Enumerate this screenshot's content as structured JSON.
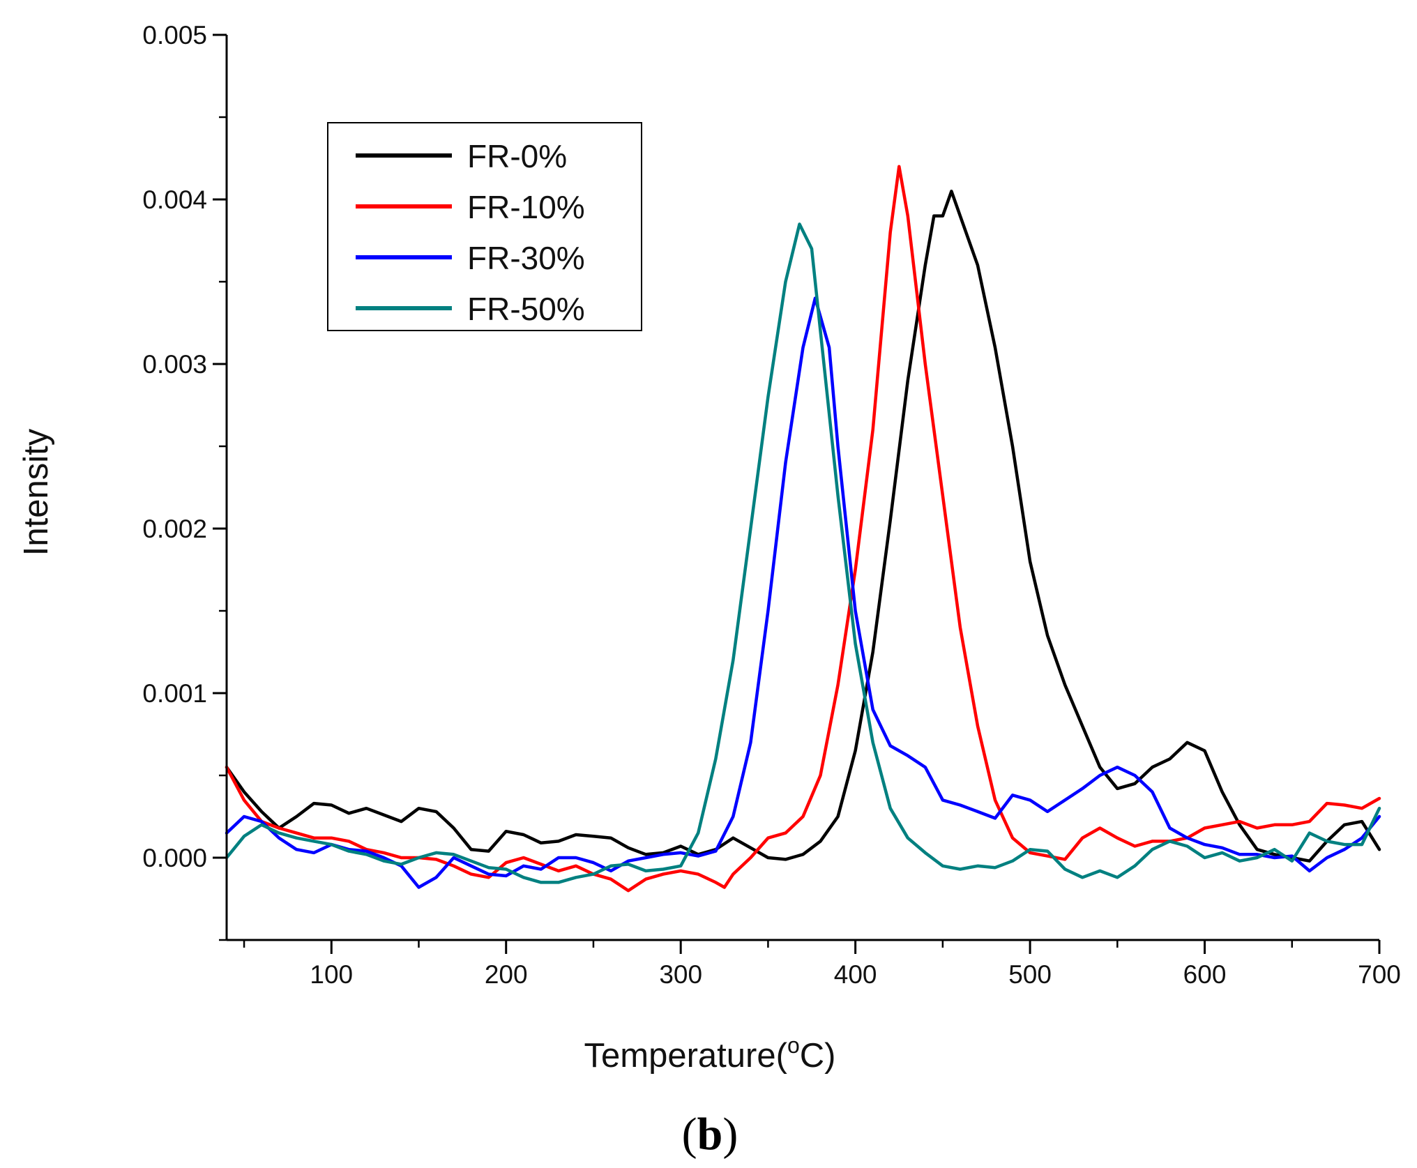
{
  "chart_data": {
    "type": "line",
    "title": "",
    "xlabel": "Temperature",
    "xlabel_unit": "(oC)",
    "xlabel_unit_parts": {
      "open": "(",
      "sup": "o",
      "unit": "C)"
    },
    "ylabel": "Intensity",
    "panel_label": "(b)",
    "panel_label_parts": {
      "open": "(",
      "letter": "b",
      "close": ")"
    },
    "xlim": [
      40,
      700
    ],
    "ylim": [
      -0.0005,
      0.005
    ],
    "xticks": [
      100,
      200,
      300,
      400,
      500,
      600,
      700
    ],
    "xtick_labels": [
      "100",
      "200",
      "300",
      "400",
      "500",
      "600",
      "700"
    ],
    "yticks": [
      0.0,
      0.001,
      0.002,
      0.003,
      0.004,
      0.005
    ],
    "ytick_labels": [
      "0.000",
      "0.001",
      "0.002",
      "0.003",
      "0.004",
      "0.005"
    ],
    "legend_position": "upper-left",
    "series": [
      {
        "name": "FR-0%",
        "color": "#000000",
        "points": [
          [
            40,
            0.00055
          ],
          [
            50,
            0.0004
          ],
          [
            60,
            0.00028
          ],
          [
            70,
            0.00018
          ],
          [
            80,
            0.00025
          ],
          [
            90,
            0.00033
          ],
          [
            100,
            0.00032
          ],
          [
            110,
            0.00027
          ],
          [
            120,
            0.0003
          ],
          [
            130,
            0.00026
          ],
          [
            140,
            0.00022
          ],
          [
            150,
            0.0003
          ],
          [
            160,
            0.00028
          ],
          [
            170,
            0.00018
          ],
          [
            180,
            5e-05
          ],
          [
            190,
            4e-05
          ],
          [
            200,
            0.00016
          ],
          [
            210,
            0.00014
          ],
          [
            220,
            9e-05
          ],
          [
            230,
            0.0001
          ],
          [
            240,
            0.00014
          ],
          [
            250,
            0.00013
          ],
          [
            260,
            0.00012
          ],
          [
            270,
            6e-05
          ],
          [
            280,
            2e-05
          ],
          [
            290,
            3e-05
          ],
          [
            300,
            7e-05
          ],
          [
            310,
            2e-05
          ],
          [
            320,
            5e-05
          ],
          [
            330,
            0.00012
          ],
          [
            340,
            6e-05
          ],
          [
            350,
            0.0
          ],
          [
            360,
            -1e-05
          ],
          [
            370,
            2e-05
          ],
          [
            380,
            0.0001
          ],
          [
            390,
            0.00025
          ],
          [
            400,
            0.00065
          ],
          [
            410,
            0.00125
          ],
          [
            420,
            0.00205
          ],
          [
            430,
            0.0029
          ],
          [
            440,
            0.0036
          ],
          [
            445,
            0.0039
          ],
          [
            450,
            0.0039
          ],
          [
            455,
            0.00405
          ],
          [
            460,
            0.0039
          ],
          [
            470,
            0.0036
          ],
          [
            480,
            0.0031
          ],
          [
            490,
            0.0025
          ],
          [
            500,
            0.0018
          ],
          [
            510,
            0.00135
          ],
          [
            520,
            0.00105
          ],
          [
            530,
            0.0008
          ],
          [
            540,
            0.00055
          ],
          [
            550,
            0.00042
          ],
          [
            560,
            0.00045
          ],
          [
            570,
            0.00055
          ],
          [
            580,
            0.0006
          ],
          [
            590,
            0.0007
          ],
          [
            600,
            0.00065
          ],
          [
            610,
            0.0004
          ],
          [
            620,
            0.0002
          ],
          [
            630,
            5e-05
          ],
          [
            640,
            2e-05
          ],
          [
            650,
            0.0
          ],
          [
            660,
            -2e-05
          ],
          [
            670,
            0.0001
          ],
          [
            680,
            0.0002
          ],
          [
            690,
            0.00022
          ],
          [
            700,
            5e-05
          ]
        ]
      },
      {
        "name": "FR-10%",
        "color": "#ff0000",
        "points": [
          [
            40,
            0.00055
          ],
          [
            50,
            0.00035
          ],
          [
            60,
            0.00022
          ],
          [
            70,
            0.00018
          ],
          [
            80,
            0.00015
          ],
          [
            90,
            0.00012
          ],
          [
            100,
            0.00012
          ],
          [
            110,
            0.0001
          ],
          [
            120,
            5e-05
          ],
          [
            130,
            3e-05
          ],
          [
            140,
            0.0
          ],
          [
            150,
            0.0
          ],
          [
            160,
            -1e-05
          ],
          [
            170,
            -5e-05
          ],
          [
            180,
            -0.0001
          ],
          [
            190,
            -0.00012
          ],
          [
            200,
            -3e-05
          ],
          [
            210,
            0.0
          ],
          [
            220,
            -4e-05
          ],
          [
            230,
            -8e-05
          ],
          [
            240,
            -5e-05
          ],
          [
            250,
            -0.0001
          ],
          [
            260,
            -0.00013
          ],
          [
            270,
            -0.0002
          ],
          [
            280,
            -0.00013
          ],
          [
            290,
            -0.0001
          ],
          [
            300,
            -8e-05
          ],
          [
            310,
            -0.0001
          ],
          [
            320,
            -0.00015
          ],
          [
            325,
            -0.00018
          ],
          [
            330,
            -0.0001
          ],
          [
            340,
            0.0
          ],
          [
            350,
            0.00012
          ],
          [
            360,
            0.00015
          ],
          [
            370,
            0.00025
          ],
          [
            380,
            0.0005
          ],
          [
            390,
            0.00105
          ],
          [
            400,
            0.00175
          ],
          [
            410,
            0.0026
          ],
          [
            420,
            0.0038
          ],
          [
            425,
            0.0042
          ],
          [
            430,
            0.0039
          ],
          [
            440,
            0.003
          ],
          [
            450,
            0.0022
          ],
          [
            460,
            0.0014
          ],
          [
            470,
            0.0008
          ],
          [
            480,
            0.00035
          ],
          [
            490,
            0.00012
          ],
          [
            500,
            3e-05
          ],
          [
            510,
            1e-05
          ],
          [
            520,
            -1e-05
          ],
          [
            530,
            0.00012
          ],
          [
            540,
            0.00018
          ],
          [
            550,
            0.00012
          ],
          [
            560,
            7e-05
          ],
          [
            570,
            0.0001
          ],
          [
            580,
            0.0001
          ],
          [
            590,
            0.00012
          ],
          [
            600,
            0.00018
          ],
          [
            610,
            0.0002
          ],
          [
            620,
            0.00022
          ],
          [
            630,
            0.00018
          ],
          [
            640,
            0.0002
          ],
          [
            650,
            0.0002
          ],
          [
            660,
            0.00022
          ],
          [
            670,
            0.00033
          ],
          [
            680,
            0.00032
          ],
          [
            690,
            0.0003
          ],
          [
            700,
            0.00036
          ]
        ]
      },
      {
        "name": "FR-30%",
        "color": "#0000ff",
        "points": [
          [
            40,
            0.00015
          ],
          [
            50,
            0.00025
          ],
          [
            60,
            0.00022
          ],
          [
            70,
            0.00012
          ],
          [
            80,
            5e-05
          ],
          [
            90,
            3e-05
          ],
          [
            100,
            8e-05
          ],
          [
            110,
            5e-05
          ],
          [
            120,
            4e-05
          ],
          [
            130,
            0.0
          ],
          [
            140,
            -5e-05
          ],
          [
            150,
            -0.00018
          ],
          [
            160,
            -0.00012
          ],
          [
            170,
            0.0
          ],
          [
            180,
            -5e-05
          ],
          [
            190,
            -0.0001
          ],
          [
            200,
            -0.00011
          ],
          [
            210,
            -5e-05
          ],
          [
            220,
            -7e-05
          ],
          [
            230,
            0.0
          ],
          [
            240,
            0.0
          ],
          [
            250,
            -3e-05
          ],
          [
            260,
            -8e-05
          ],
          [
            270,
            -2e-05
          ],
          [
            280,
            0.0
          ],
          [
            290,
            2e-05
          ],
          [
            300,
            3e-05
          ],
          [
            310,
            1e-05
          ],
          [
            320,
            4e-05
          ],
          [
            330,
            0.00025
          ],
          [
            340,
            0.0007
          ],
          [
            350,
            0.0015
          ],
          [
            360,
            0.0024
          ],
          [
            370,
            0.0031
          ],
          [
            377,
            0.0034
          ],
          [
            385,
            0.0031
          ],
          [
            390,
            0.0025
          ],
          [
            400,
            0.0015
          ],
          [
            410,
            0.0009
          ],
          [
            420,
            0.00068
          ],
          [
            430,
            0.00062
          ],
          [
            440,
            0.00055
          ],
          [
            450,
            0.00035
          ],
          [
            460,
            0.00032
          ],
          [
            470,
            0.00028
          ],
          [
            480,
            0.00024
          ],
          [
            490,
            0.00038
          ],
          [
            500,
            0.00035
          ],
          [
            510,
            0.00028
          ],
          [
            520,
            0.00035
          ],
          [
            530,
            0.00042
          ],
          [
            540,
            0.0005
          ],
          [
            550,
            0.00055
          ],
          [
            560,
            0.0005
          ],
          [
            570,
            0.0004
          ],
          [
            580,
            0.00018
          ],
          [
            590,
            0.00012
          ],
          [
            600,
            8e-05
          ],
          [
            610,
            6e-05
          ],
          [
            620,
            2e-05
          ],
          [
            630,
            2e-05
          ],
          [
            640,
            0.0
          ],
          [
            650,
            1e-05
          ],
          [
            660,
            -8e-05
          ],
          [
            670,
            0.0
          ],
          [
            680,
            5e-05
          ],
          [
            690,
            0.00012
          ],
          [
            700,
            0.00025
          ]
        ]
      },
      {
        "name": "FR-50%",
        "color": "#008080",
        "points": [
          [
            40,
            0.0
          ],
          [
            50,
            0.00013
          ],
          [
            60,
            0.0002
          ],
          [
            70,
            0.00015
          ],
          [
            80,
            0.00012
          ],
          [
            90,
            0.0001
          ],
          [
            100,
            8e-05
          ],
          [
            110,
            4e-05
          ],
          [
            120,
            2e-05
          ],
          [
            130,
            -2e-05
          ],
          [
            140,
            -4e-05
          ],
          [
            150,
            0.0
          ],
          [
            160,
            3e-05
          ],
          [
            170,
            2e-05
          ],
          [
            180,
            -2e-05
          ],
          [
            190,
            -6e-05
          ],
          [
            200,
            -7e-05
          ],
          [
            210,
            -0.00012
          ],
          [
            220,
            -0.00015
          ],
          [
            230,
            -0.00015
          ],
          [
            240,
            -0.00012
          ],
          [
            250,
            -0.0001
          ],
          [
            260,
            -5e-05
          ],
          [
            270,
            -4e-05
          ],
          [
            280,
            -8e-05
          ],
          [
            290,
            -7e-05
          ],
          [
            300,
            -5e-05
          ],
          [
            310,
            0.00015
          ],
          [
            320,
            0.0006
          ],
          [
            330,
            0.0012
          ],
          [
            340,
            0.002
          ],
          [
            350,
            0.0028
          ],
          [
            360,
            0.0035
          ],
          [
            368,
            0.00385
          ],
          [
            375,
            0.0037
          ],
          [
            380,
            0.0032
          ],
          [
            390,
            0.0022
          ],
          [
            400,
            0.0013
          ],
          [
            410,
            0.0007
          ],
          [
            420,
            0.0003
          ],
          [
            430,
            0.00012
          ],
          [
            440,
            3e-05
          ],
          [
            450,
            -5e-05
          ],
          [
            460,
            -7e-05
          ],
          [
            470,
            -5e-05
          ],
          [
            480,
            -6e-05
          ],
          [
            490,
            -2e-05
          ],
          [
            500,
            5e-05
          ],
          [
            510,
            4e-05
          ],
          [
            520,
            -7e-05
          ],
          [
            530,
            -0.00012
          ],
          [
            540,
            -8e-05
          ],
          [
            550,
            -0.00012
          ],
          [
            560,
            -5e-05
          ],
          [
            570,
            5e-05
          ],
          [
            580,
            0.0001
          ],
          [
            590,
            7e-05
          ],
          [
            600,
            0.0
          ],
          [
            610,
            3e-05
          ],
          [
            620,
            -2e-05
          ],
          [
            630,
            0.0
          ],
          [
            640,
            5e-05
          ],
          [
            650,
            -2e-05
          ],
          [
            660,
            0.00015
          ],
          [
            670,
            0.0001
          ],
          [
            680,
            8e-05
          ],
          [
            690,
            8e-05
          ],
          [
            700,
            0.0003
          ]
        ]
      }
    ]
  }
}
